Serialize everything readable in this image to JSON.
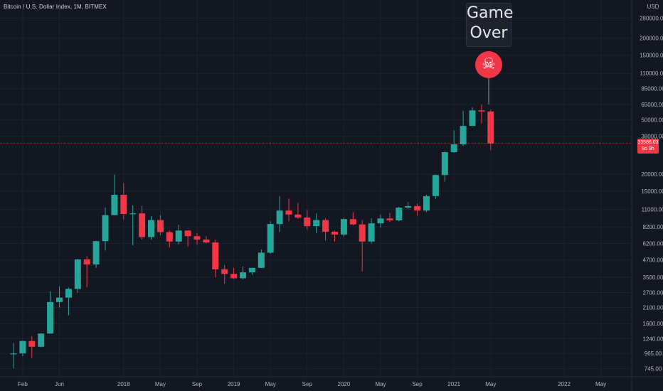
{
  "symbol": "Bitcoin / U.S. Dollar Index, 1M, BITMEX",
  "annotation": {
    "text": "Game Over",
    "icon": "skull-crossbones-icon",
    "glyph": "☠"
  },
  "colors": {
    "background": "#131722",
    "up": "#26a69a",
    "down": "#f23645",
    "grid": "#1e222d",
    "text": "#b2b5be"
  },
  "price_axis": {
    "currency": "USD",
    "current_price": "33586.03",
    "countdown": "8d 9h",
    "labels": [
      "280000.00",
      "200000.00",
      "150000.00",
      "110000.00",
      "85000.00",
      "65000.00",
      "50000.00",
      "38000.00",
      "20000.00",
      "15000.00",
      "11000.00",
      "8200.00",
      "6200.00",
      "4700.00",
      "3500.00",
      "2700.00",
      "2100.00",
      "1600.00",
      "1240.00",
      "965.00",
      "745.00"
    ]
  },
  "time_axis": {
    "labels": [
      "Feb",
      "Jun",
      "2018",
      "May",
      "Sep",
      "2019",
      "May",
      "Sep",
      "2020",
      "May",
      "Sep",
      "2021",
      "May",
      "2022",
      "May"
    ]
  },
  "chart_data": {
    "type": "candlestick",
    "scale": "log",
    "ylim": [
      650,
      380000
    ],
    "candles": [
      {
        "t": "2017-01",
        "o": 965,
        "h": 1150,
        "l": 750,
        "c": 965
      },
      {
        "t": "2017-02",
        "o": 965,
        "h": 1200,
        "l": 920,
        "c": 1190
      },
      {
        "t": "2017-03",
        "o": 1190,
        "h": 1290,
        "l": 890,
        "c": 1080
      },
      {
        "t": "2017-04",
        "o": 1080,
        "h": 1360,
        "l": 1070,
        "c": 1350
      },
      {
        "t": "2017-05",
        "o": 1350,
        "h": 2760,
        "l": 1350,
        "c": 2300
      },
      {
        "t": "2017-06",
        "o": 2300,
        "h": 3000,
        "l": 2100,
        "c": 2480
      },
      {
        "t": "2017-07",
        "o": 2480,
        "h": 2950,
        "l": 1840,
        "c": 2870
      },
      {
        "t": "2017-08",
        "o": 2870,
        "h": 4780,
        "l": 2690,
        "c": 4730
      },
      {
        "t": "2017-09",
        "o": 4730,
        "h": 5000,
        "l": 2970,
        "c": 4340
      },
      {
        "t": "2017-10",
        "o": 4340,
        "h": 6480,
        "l": 4100,
        "c": 6440
      },
      {
        "t": "2017-11",
        "o": 6440,
        "h": 11400,
        "l": 5500,
        "c": 10000
      },
      {
        "t": "2017-12",
        "o": 10000,
        "h": 19800,
        "l": 10000,
        "c": 14100
      },
      {
        "t": "2018-01",
        "o": 14100,
        "h": 17200,
        "l": 9300,
        "c": 10200
      },
      {
        "t": "2018-02",
        "o": 10200,
        "h": 11800,
        "l": 6000,
        "c": 10300
      },
      {
        "t": "2018-03",
        "o": 10300,
        "h": 11700,
        "l": 6600,
        "c": 6900
      },
      {
        "t": "2018-04",
        "o": 6900,
        "h": 9800,
        "l": 6600,
        "c": 9200
      },
      {
        "t": "2018-05",
        "o": 9200,
        "h": 10000,
        "l": 7100,
        "c": 7500
      },
      {
        "t": "2018-06",
        "o": 7500,
        "h": 7750,
        "l": 5780,
        "c": 6400
      },
      {
        "t": "2018-07",
        "o": 6400,
        "h": 8500,
        "l": 6100,
        "c": 7700
      },
      {
        "t": "2018-08",
        "o": 7700,
        "h": 7750,
        "l": 5880,
        "c": 7000
      },
      {
        "t": "2018-09",
        "o": 7000,
        "h": 7400,
        "l": 6100,
        "c": 6620
      },
      {
        "t": "2018-10",
        "o": 6620,
        "h": 7000,
        "l": 6200,
        "c": 6300
      },
      {
        "t": "2018-11",
        "o": 6300,
        "h": 6600,
        "l": 3500,
        "c": 4000
      },
      {
        "t": "2018-12",
        "o": 4000,
        "h": 4300,
        "l": 3130,
        "c": 3700
      },
      {
        "t": "2019-01",
        "o": 3700,
        "h": 4100,
        "l": 3400,
        "c": 3440
      },
      {
        "t": "2019-02",
        "o": 3440,
        "h": 4200,
        "l": 3380,
        "c": 3800
      },
      {
        "t": "2019-03",
        "o": 3800,
        "h": 4100,
        "l": 3650,
        "c": 4100
      },
      {
        "t": "2019-04",
        "o": 4100,
        "h": 5600,
        "l": 4080,
        "c": 5300
      },
      {
        "t": "2019-05",
        "o": 5300,
        "h": 9000,
        "l": 5200,
        "c": 8600
      },
      {
        "t": "2019-06",
        "o": 8600,
        "h": 13800,
        "l": 7500,
        "c": 10800
      },
      {
        "t": "2019-07",
        "o": 10800,
        "h": 13200,
        "l": 9000,
        "c": 10100
      },
      {
        "t": "2019-08",
        "o": 10100,
        "h": 12300,
        "l": 9400,
        "c": 9600
      },
      {
        "t": "2019-09",
        "o": 9600,
        "h": 10900,
        "l": 7800,
        "c": 8300
      },
      {
        "t": "2019-10",
        "o": 8300,
        "h": 10300,
        "l": 7400,
        "c": 9200
      },
      {
        "t": "2019-11",
        "o": 9200,
        "h": 9500,
        "l": 6500,
        "c": 7550
      },
      {
        "t": "2019-12",
        "o": 7550,
        "h": 7700,
        "l": 6400,
        "c": 7200
      },
      {
        "t": "2020-01",
        "o": 7200,
        "h": 9600,
        "l": 6900,
        "c": 9350
      },
      {
        "t": "2020-02",
        "o": 9350,
        "h": 10500,
        "l": 8400,
        "c": 8550
      },
      {
        "t": "2020-03",
        "o": 8550,
        "h": 9200,
        "l": 3850,
        "c": 6400
      },
      {
        "t": "2020-04",
        "o": 6400,
        "h": 9500,
        "l": 6200,
        "c": 8700
      },
      {
        "t": "2020-05",
        "o": 8700,
        "h": 10100,
        "l": 8100,
        "c": 9450
      },
      {
        "t": "2020-06",
        "o": 9450,
        "h": 10400,
        "l": 8900,
        "c": 9150
      },
      {
        "t": "2020-07",
        "o": 9150,
        "h": 11500,
        "l": 9000,
        "c": 11350
      },
      {
        "t": "2020-08",
        "o": 11350,
        "h": 12500,
        "l": 11000,
        "c": 11650
      },
      {
        "t": "2020-09",
        "o": 11650,
        "h": 12100,
        "l": 9900,
        "c": 10800
      },
      {
        "t": "2020-10",
        "o": 10800,
        "h": 14100,
        "l": 10500,
        "c": 13800
      },
      {
        "t": "2020-11",
        "o": 13800,
        "h": 19900,
        "l": 13200,
        "c": 19700
      },
      {
        "t": "2020-12",
        "o": 19700,
        "h": 29300,
        "l": 17600,
        "c": 29000
      },
      {
        "t": "2021-01",
        "o": 29000,
        "h": 42000,
        "l": 28700,
        "c": 33100
      },
      {
        "t": "2021-02",
        "o": 33100,
        "h": 58500,
        "l": 32200,
        "c": 45200
      },
      {
        "t": "2021-03",
        "o": 45200,
        "h": 61800,
        "l": 45000,
        "c": 58800
      },
      {
        "t": "2021-04",
        "o": 58800,
        "h": 64900,
        "l": 47000,
        "c": 57700
      },
      {
        "t": "2021-05",
        "o": 57700,
        "h": 59500,
        "l": 30000,
        "c": 33586
      }
    ]
  }
}
